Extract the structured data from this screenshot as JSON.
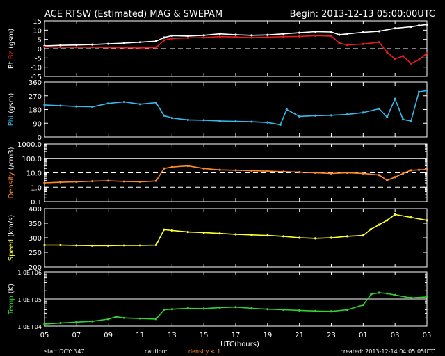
{
  "chart_data": {
    "type": "line",
    "title": "ACE RTSW (Estimated) MAG & SWEPAM",
    "begin_label": "Begin: 2013-12-13 05:00:00UTC",
    "xlabel": "UTC(hours)",
    "x_ticks": [
      "05",
      "07",
      "09",
      "11",
      "13",
      "15",
      "17",
      "19",
      "21",
      "23",
      "01",
      "03",
      "05"
    ],
    "x_range_hours": [
      0,
      24
    ],
    "footer": {
      "start_doy": "start DOY: 347",
      "caution": "caution:",
      "density_note": "density < 1",
      "created": "created: 2013-12-14 04:05:05UTC"
    },
    "colors": {
      "background": "#000000",
      "axes": "#ffffff",
      "bt": "#ffffff",
      "bz": "#e81e1e",
      "phi": "#38b8e8",
      "density": "#ff8c28",
      "speed": "#ffff32",
      "temp": "#32d232",
      "caution_text": "#ff8c28"
    },
    "panels": [
      {
        "id": "mag",
        "ylabel_parts": [
          {
            "text": "Bt",
            "color": "#ffffff"
          },
          {
            "text": "Bz",
            "color": "#e81e1e"
          },
          {
            "text": "(gsm)",
            "color": "#ffffff"
          }
        ],
        "scale": "linear",
        "ylim": [
          -15,
          15
        ],
        "y_ticks": [
          "15",
          "10",
          "5",
          "0",
          "-5",
          "-10",
          "-15"
        ],
        "y_tick_values": [
          15,
          10,
          5,
          0,
          -5,
          -10,
          -15
        ],
        "dashed_lines": [
          0
        ],
        "series": [
          {
            "key": "Bt",
            "color": "#ffffff",
            "x": [
              0,
              1,
              2,
              3,
              4,
              5,
              6,
              7,
              7.5,
              8,
              9,
              10,
              11,
              12,
              13,
              14,
              15,
              16,
              17,
              18,
              18.5,
              19,
              20,
              21,
              22,
              23,
              23.5,
              24
            ],
            "y": [
              1.5,
              1.8,
              2.0,
              2.2,
              2.6,
              3.0,
              3.5,
              4.0,
              6.0,
              7.0,
              6.8,
              7.2,
              8.0,
              7.5,
              7.2,
              7.4,
              8.0,
              8.6,
              9.2,
              9.0,
              7.5,
              8.0,
              8.8,
              9.4,
              11.0,
              11.8,
              12.5,
              13.0
            ]
          },
          {
            "key": "Bz",
            "color": "#e81e1e",
            "x": [
              0,
              1,
              2,
              3,
              4,
              5,
              6,
              7,
              7.5,
              8,
              9,
              10,
              11,
              12,
              13,
              14,
              15,
              16,
              17,
              18,
              18.5,
              19,
              20,
              21,
              21.5,
              22,
              22.5,
              23,
              23.5,
              24
            ],
            "y": [
              1.0,
              0.8,
              0.7,
              0.8,
              0.6,
              0.5,
              0.4,
              0.6,
              4.5,
              5.5,
              5.8,
              6.0,
              6.5,
              6.3,
              6.0,
              6.2,
              6.5,
              6.6,
              7.0,
              6.8,
              3.0,
              2.0,
              2.5,
              3.5,
              -2.0,
              -5.5,
              -4.0,
              -8.0,
              -6.0,
              -2.5
            ]
          }
        ]
      },
      {
        "id": "phi",
        "ylabel_parts": [
          {
            "text": "Phi",
            "color": "#38b8e8"
          },
          {
            "text": "(gsm)",
            "color": "#ffffff"
          }
        ],
        "scale": "linear",
        "ylim": [
          0,
          360
        ],
        "y_ticks": [
          "360",
          "270",
          "180",
          "90",
          "0"
        ],
        "y_tick_values": [
          360,
          270,
          180,
          90,
          0
        ],
        "dashed_lines": [],
        "series": [
          {
            "key": "Phi",
            "color": "#38b8e8",
            "x": [
              0,
              1,
              2,
              3,
              4,
              5,
              6,
              7,
              7.5,
              8,
              9,
              10,
              11,
              12,
              13,
              14,
              14.8,
              15.2,
              16,
              17,
              18,
              19,
              20,
              21,
              21.5,
              22,
              22.5,
              23,
              23.5,
              24
            ],
            "y": [
              210,
              205,
              200,
              198,
              220,
              230,
              215,
              225,
              140,
              125,
              112,
              110,
              105,
              102,
              100,
              95,
              80,
              180,
              135,
              140,
              142,
              148,
              160,
              185,
              130,
              250,
              115,
              105,
              295,
              305
            ]
          }
        ]
      },
      {
        "id": "density",
        "ylabel_parts": [
          {
            "text": "Density",
            "color": "#ff8c28"
          },
          {
            "text": "(/cm3)",
            "color": "#ffffff"
          }
        ],
        "scale": "log",
        "ylim": [
          0.1,
          1000
        ],
        "y_ticks": [
          "1000.0",
          "100.0",
          "10.0",
          "1.0",
          "0.1"
        ],
        "y_tick_values": [
          1000,
          100,
          10,
          1,
          0.1
        ],
        "solid_lines": [
          100
        ],
        "dashed_lines": [
          10,
          1
        ],
        "series": [
          {
            "key": "Density",
            "color": "#ff8c28",
            "x": [
              0,
              1,
              2,
              3,
              4,
              5,
              6,
              7,
              7.5,
              8,
              9,
              10,
              11,
              12,
              13,
              14,
              15,
              16,
              17,
              18,
              19,
              20,
              21,
              21.5,
              22,
              22.5,
              23,
              23.5,
              24
            ],
            "y": [
              2.0,
              2.2,
              2.4,
              2.6,
              2.8,
              2.5,
              2.4,
              2.7,
              20,
              25,
              30,
              20,
              16,
              15,
              14,
              13,
              12,
              11,
              10,
              9,
              10,
              9,
              7,
              3,
              5,
              9,
              15,
              16,
              17
            ]
          }
        ]
      },
      {
        "id": "speed",
        "ylabel_parts": [
          {
            "text": "Speed",
            "color": "#ffff32"
          },
          {
            "text": "(km/s)",
            "color": "#ffffff"
          }
        ],
        "scale": "linear",
        "ylim": [
          200,
          400
        ],
        "y_ticks": [
          "400",
          "350",
          "300",
          "250",
          "200"
        ],
        "y_tick_values": [
          400,
          350,
          300,
          250,
          200
        ],
        "dashed_lines": [],
        "series": [
          {
            "key": "Speed",
            "color": "#ffff32",
            "x": [
              0,
              1,
              2,
              3,
              4,
              5,
              6,
              7,
              7.5,
              8,
              9,
              10,
              11,
              12,
              13,
              14,
              15,
              16,
              17,
              18,
              19,
              20,
              20.5,
              21,
              21.5,
              22,
              23,
              24
            ],
            "y": [
              275,
              275,
              274,
              273,
              273,
              274,
              274,
              275,
              328,
              325,
              320,
              318,
              315,
              312,
              310,
              308,
              305,
              300,
              298,
              300,
              305,
              308,
              330,
              345,
              360,
              380,
              370,
              360
            ]
          }
        ]
      },
      {
        "id": "temp",
        "ylabel_parts": [
          {
            "text": "Temp",
            "color": "#32d232"
          },
          {
            "text": "(K)",
            "color": "#ffffff"
          }
        ],
        "scale": "log",
        "ylim": [
          10000,
          1000000
        ],
        "y_ticks": [
          "1.0E+06",
          "1.0E+05",
          "1.0E+04"
        ],
        "y_tick_values": [
          1000000,
          100000,
          10000
        ],
        "solid_lines": [
          100000
        ],
        "dashed_lines": [],
        "series": [
          {
            "key": "Temp",
            "color": "#32d232",
            "x": [
              0,
              1,
              2,
              3,
              4,
              4.5,
              5,
              6,
              7,
              7.5,
              8,
              9,
              10,
              11,
              12,
              13,
              14,
              15,
              16,
              17,
              18,
              19,
              20,
              20.5,
              21,
              21.5,
              22,
              23,
              24
            ],
            "y": [
              12000,
              13000,
              14000,
              15000,
              18000,
              22000,
              20000,
              19000,
              18000,
              40000,
              42000,
              45000,
              44000,
              48000,
              50000,
              45000,
              42000,
              40000,
              38000,
              36000,
              35000,
              40000,
              60000,
              150000,
              170000,
              160000,
              140000,
              110000,
              120000
            ]
          }
        ]
      }
    ]
  }
}
